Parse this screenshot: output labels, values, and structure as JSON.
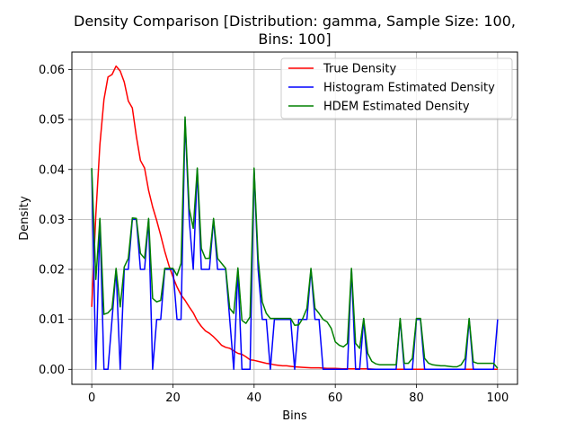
{
  "chart_data": {
    "type": "line",
    "title_line1": "Density Comparison [Distribution: gamma, Sample Size: 100,",
    "title_line2": "Bins: 100]",
    "xlabel": "Bins",
    "ylabel": "Density",
    "xlim": [
      -4.9,
      104.9
    ],
    "ylim": [
      -0.003,
      0.0635
    ],
    "xticks": [
      0,
      20,
      40,
      60,
      80,
      100
    ],
    "xtick_labels": [
      "0",
      "20",
      "40",
      "60",
      "80",
      "100"
    ],
    "yticks": [
      0.0,
      0.01,
      0.02,
      0.03,
      0.04,
      0.05,
      0.06
    ],
    "ytick_labels": [
      "0.00",
      "0.01",
      "0.02",
      "0.03",
      "0.04",
      "0.05",
      "0.06"
    ],
    "grid": true,
    "legend_position": "upper right",
    "series": [
      {
        "name": "True Density",
        "color": "#ff0000",
        "x": [
          0,
          1,
          2,
          3,
          4,
          5,
          6,
          7,
          8,
          9,
          10,
          11,
          12,
          13,
          14,
          15,
          16,
          17,
          18,
          19,
          20,
          21,
          22,
          23,
          24,
          25,
          26,
          27,
          28,
          29,
          30,
          31,
          32,
          33,
          34,
          35,
          36,
          37,
          38,
          39,
          40,
          41,
          42,
          43,
          44,
          45,
          46,
          47,
          48,
          49,
          50,
          52,
          54,
          56,
          58,
          60,
          62,
          64,
          66,
          68,
          70,
          72,
          74,
          76,
          78,
          80,
          82,
          84,
          86,
          88,
          90,
          92,
          94,
          96,
          98,
          100
        ],
        "values": [
          0.0125,
          0.031,
          0.045,
          0.054,
          0.0585,
          0.059,
          0.0607,
          0.0597,
          0.0575,
          0.0537,
          0.0523,
          0.0466,
          0.0418,
          0.0403,
          0.0358,
          0.0325,
          0.0298,
          0.0268,
          0.0236,
          0.0208,
          0.0185,
          0.0165,
          0.0149,
          0.0138,
          0.0125,
          0.0113,
          0.0097,
          0.0086,
          0.0077,
          0.0072,
          0.0065,
          0.0057,
          0.0048,
          0.0044,
          0.0042,
          0.0037,
          0.0032,
          0.003,
          0.0025,
          0.0019,
          0.0018,
          0.0016,
          0.0014,
          0.0012,
          0.0011,
          0.0009,
          0.0008,
          0.0007,
          0.0007,
          0.0006,
          0.0005,
          0.0004,
          0.0003,
          0.0003,
          0.0002,
          0.0002,
          0.0001,
          0.0001,
          0.0001,
          0.0001,
          0.0,
          0.0,
          0.0,
          0.0,
          0.0,
          0.0,
          0.0,
          0.0,
          0.0,
          0.0,
          0.0,
          0.0,
          0.0,
          0.0,
          0.0,
          0.0
        ]
      },
      {
        "name": "Histogram Estimated Density",
        "color": "#0000ff",
        "x": [
          0,
          1,
          2,
          3,
          4,
          5,
          6,
          7,
          8,
          9,
          10,
          11,
          12,
          13,
          14,
          15,
          16,
          17,
          18,
          19,
          20,
          21,
          22,
          23,
          24,
          25,
          26,
          27,
          28,
          29,
          30,
          31,
          32,
          33,
          34,
          35,
          36,
          37,
          38,
          39,
          40,
          41,
          42,
          43,
          44,
          45,
          46,
          47,
          48,
          49,
          50,
          51,
          52,
          53,
          54,
          55,
          56,
          57,
          58,
          59,
          60,
          61,
          62,
          63,
          64,
          65,
          66,
          67,
          68,
          69,
          70,
          71,
          72,
          73,
          74,
          75,
          76,
          77,
          78,
          79,
          80,
          81,
          82,
          83,
          84,
          85,
          86,
          87,
          88,
          89,
          90,
          91,
          92,
          93,
          94,
          95,
          96,
          97,
          98,
          99,
          100
        ],
        "values": [
          0.04,
          0.0,
          0.03,
          0.0,
          0.0,
          0.01,
          0.02,
          0.0,
          0.02,
          0.02,
          0.03,
          0.03,
          0.02,
          0.02,
          0.03,
          0.0,
          0.01,
          0.01,
          0.02,
          0.02,
          0.02,
          0.01,
          0.01,
          0.05,
          0.03,
          0.02,
          0.04,
          0.02,
          0.02,
          0.02,
          0.03,
          0.02,
          0.02,
          0.02,
          0.01,
          0.0,
          0.02,
          0.0,
          0.0,
          0.0,
          0.04,
          0.02,
          0.01,
          0.01,
          0.0,
          0.01,
          0.01,
          0.01,
          0.01,
          0.01,
          0.0,
          0.01,
          0.01,
          0.01,
          0.02,
          0.01,
          0.01,
          0.0,
          0.0,
          0.0,
          0.0,
          0.0,
          0.0,
          0.0,
          0.02,
          0.0,
          0.0,
          0.01,
          0.0,
          0.0,
          0.0,
          0.0,
          0.0,
          0.0,
          0.0,
          0.0,
          0.01,
          0.0,
          0.0,
          0.0,
          0.01,
          0.01,
          0.0,
          0.0,
          0.0,
          0.0,
          0.0,
          0.0,
          0.0,
          0.0,
          0.0,
          0.0,
          0.0,
          0.01,
          0.0,
          0.0,
          0.0,
          0.0,
          0.0,
          0.0,
          0.01
        ]
      },
      {
        "name": "HDEM Estimated Density",
        "color": "#008000",
        "x": [
          0,
          1,
          2,
          3,
          4,
          5,
          6,
          7,
          8,
          9,
          10,
          11,
          12,
          13,
          14,
          15,
          16,
          17,
          18,
          19,
          20,
          21,
          22,
          23,
          24,
          25,
          26,
          27,
          28,
          29,
          30,
          31,
          32,
          33,
          34,
          35,
          36,
          37,
          38,
          39,
          40,
          41,
          42,
          43,
          44,
          45,
          46,
          47,
          48,
          49,
          50,
          51,
          52,
          53,
          54,
          55,
          56,
          57,
          58,
          59,
          60,
          61,
          62,
          63,
          64,
          65,
          66,
          67,
          68,
          69,
          70,
          71,
          72,
          73,
          74,
          75,
          76,
          77,
          78,
          79,
          80,
          81,
          82,
          83,
          84,
          85,
          86,
          87,
          88,
          89,
          90,
          91,
          92,
          93,
          94,
          95,
          96,
          97,
          98,
          99,
          100
        ],
        "values": [
          0.0403,
          0.018,
          0.0302,
          0.011,
          0.0113,
          0.0122,
          0.0202,
          0.0125,
          0.0205,
          0.0222,
          0.0303,
          0.0302,
          0.0232,
          0.0222,
          0.0302,
          0.0142,
          0.0135,
          0.0138,
          0.0202,
          0.0202,
          0.0202,
          0.0188,
          0.0212,
          0.0505,
          0.0322,
          0.0282,
          0.0403,
          0.0242,
          0.0222,
          0.0222,
          0.0302,
          0.0222,
          0.0212,
          0.0202,
          0.0122,
          0.0112,
          0.0203,
          0.0098,
          0.0092,
          0.0105,
          0.0403,
          0.0222,
          0.0135,
          0.0112,
          0.0102,
          0.0102,
          0.0102,
          0.0102,
          0.0102,
          0.0102,
          0.0088,
          0.0089,
          0.0102,
          0.0122,
          0.0202,
          0.0122,
          0.0112,
          0.01,
          0.0095,
          0.0082,
          0.0055,
          0.0048,
          0.0045,
          0.0052,
          0.0202,
          0.0052,
          0.0042,
          0.0102,
          0.0032,
          0.0016,
          0.0011,
          0.0009,
          0.0009,
          0.0009,
          0.0009,
          0.0009,
          0.0102,
          0.0012,
          0.0012,
          0.0022,
          0.0102,
          0.0102,
          0.0022,
          0.0012,
          0.0009,
          0.0008,
          0.0007,
          0.0007,
          0.0006,
          0.0005,
          0.0005,
          0.0009,
          0.0022,
          0.0102,
          0.0015,
          0.0012,
          0.0012,
          0.0012,
          0.0012,
          0.0012,
          0.0002
        ]
      }
    ]
  }
}
